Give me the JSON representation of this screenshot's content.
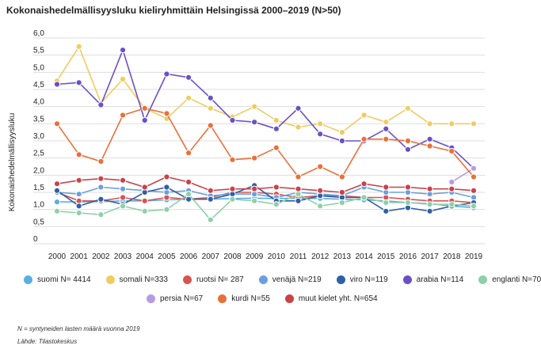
{
  "title": "Kokonaishedelmällisyysluku kieliryhmittäin Helsingissä 2000–2019 (N>50)",
  "footnote_n": "N = syntyneiden lasten määrä vuonna 2019",
  "source": "Lähde: Tilastokeskus",
  "chart_data": {
    "type": "line",
    "title": "Kokonaishedelmällisyysluku kieliryhmittäin Helsingissä 2000–2019 (N>50)",
    "xlabel": "",
    "ylabel": "Kokonaishedelmällisyysluku",
    "x": [
      "2000",
      "2001",
      "2002",
      "2003",
      "2004",
      "2005",
      "2006",
      "2007",
      "2008",
      "2009",
      "2010",
      "2011",
      "2012",
      "2013",
      "2014",
      "2015",
      "2016",
      "2017",
      "2018",
      "2019"
    ],
    "ylim": [
      0,
      6
    ],
    "yticks": [
      "0",
      "0,5",
      "1,0",
      "1,5",
      "2,0",
      "2,5",
      "3,0",
      "3,5",
      "4,0",
      "4,5",
      "5,0",
      "5,5",
      "6,0"
    ],
    "grid": "horizontal",
    "legend": "bottom",
    "series": [
      {
        "name": "suomi N= 4414",
        "color": "#5aaee0",
        "values": [
          1.22,
          1.22,
          1.23,
          1.25,
          1.25,
          1.28,
          1.3,
          1.3,
          1.32,
          1.33,
          1.32,
          1.33,
          1.32,
          1.3,
          1.28,
          1.25,
          1.2,
          1.17,
          1.1,
          1.05
        ]
      },
      {
        "name": "somali N=333",
        "color": "#f0cc60",
        "values": [
          4.75,
          5.75,
          4.1,
          4.8,
          3.95,
          3.65,
          4.25,
          3.95,
          3.7,
          4.0,
          3.6,
          3.4,
          3.5,
          3.25,
          3.75,
          3.55,
          3.95,
          3.5,
          3.5,
          3.5
        ]
      },
      {
        "name": "ruotsi N= 287",
        "color": "#d9534f",
        "values": [
          1.5,
          1.25,
          1.25,
          1.35,
          1.25,
          1.35,
          1.3,
          1.35,
          1.5,
          1.5,
          1.45,
          1.35,
          1.4,
          1.4,
          1.35,
          1.35,
          1.3,
          1.25,
          1.25,
          1.2
        ]
      },
      {
        "name": "venäjä N=219",
        "color": "#6b9fe0",
        "values": [
          1.5,
          1.45,
          1.65,
          1.6,
          1.55,
          1.5,
          1.55,
          1.4,
          1.45,
          1.45,
          1.35,
          1.5,
          1.45,
          1.4,
          1.65,
          1.5,
          1.5,
          1.45,
          1.5,
          1.35
        ]
      },
      {
        "name": "viro N=119",
        "color": "#2f5fa7",
        "values": [
          1.55,
          1.1,
          1.3,
          1.15,
          1.5,
          1.65,
          1.3,
          1.3,
          1.45,
          1.7,
          1.25,
          1.25,
          1.4,
          1.35,
          1.35,
          0.95,
          1.05,
          0.95,
          1.1,
          1.2
        ]
      },
      {
        "name": "arabia N=114",
        "color": "#6a50c8",
        "values": [
          4.65,
          4.7,
          4.05,
          5.65,
          3.6,
          4.95,
          4.85,
          4.25,
          3.6,
          3.55,
          3.35,
          3.95,
          3.2,
          3.0,
          3.0,
          3.35,
          2.75,
          3.05,
          2.8,
          2.2
        ]
      },
      {
        "name": "englanti N=70",
        "color": "#8fcfa9",
        "values": [
          0.95,
          0.9,
          0.85,
          1.1,
          0.95,
          1.0,
          1.45,
          0.7,
          1.3,
          1.25,
          1.15,
          1.45,
          1.1,
          1.2,
          1.35,
          1.2,
          1.2,
          1.15,
          1.15,
          1.1
        ]
      },
      {
        "name": "persia N=67",
        "color": "#b79ae6",
        "values": [
          null,
          null,
          null,
          null,
          null,
          null,
          null,
          null,
          null,
          null,
          null,
          null,
          null,
          null,
          null,
          null,
          null,
          null,
          1.8,
          2.2
        ]
      },
      {
        "name": "kurdi N=55",
        "color": "#e8703a",
        "values": [
          3.5,
          2.6,
          2.4,
          3.75,
          3.95,
          3.8,
          2.65,
          3.45,
          2.45,
          2.5,
          2.8,
          1.95,
          2.25,
          1.95,
          3.05,
          3.05,
          3.0,
          2.85,
          2.7,
          1.95
        ]
      },
      {
        "name": "muut kielet yht. N=654",
        "color": "#c8444a",
        "values": [
          1.75,
          1.85,
          1.9,
          1.85,
          1.65,
          1.95,
          1.8,
          1.55,
          1.6,
          1.6,
          1.65,
          1.6,
          1.55,
          1.5,
          1.75,
          1.65,
          1.65,
          1.6,
          1.6,
          1.55
        ]
      }
    ]
  }
}
